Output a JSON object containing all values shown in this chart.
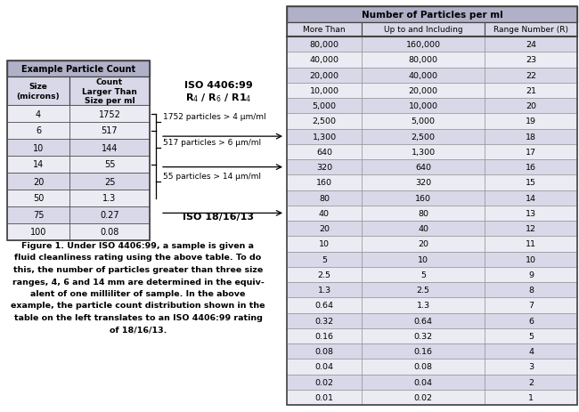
{
  "left_table_header": "Example Particle Count",
  "left_table_col1_header": "Size\n(microns)",
  "left_table_col2_header": "Count\nLarger Than\nSize per ml",
  "left_table_data": [
    [
      "4",
      "1752"
    ],
    [
      "6",
      "517"
    ],
    [
      "10",
      "144"
    ],
    [
      "14",
      "55"
    ],
    [
      "20",
      "25"
    ],
    [
      "50",
      "1.3"
    ],
    [
      "75",
      "0.27"
    ],
    [
      "100",
      "0.08"
    ]
  ],
  "iso_label": "ISO 4406:99",
  "iso_sub_r": "R",
  "iso_bottom": "ISO 18/16/13",
  "ann_labels": [
    "1752 particles > 4 μm/ml",
    "517 particles > 6 μm/ml",
    "55 particles > 14 μm/ml"
  ],
  "right_table_main_header": "Number of Particles per ml",
  "right_table_col_headers": [
    "More Than",
    "Up to and Including",
    "Range Number (R)"
  ],
  "right_table_data": [
    [
      "80,000",
      "160,000",
      "24"
    ],
    [
      "40,000",
      "80,000",
      "23"
    ],
    [
      "20,000",
      "40,000",
      "22"
    ],
    [
      "10,000",
      "20,000",
      "21"
    ],
    [
      "5,000",
      "10,000",
      "20"
    ],
    [
      "2,500",
      "5,000",
      "19"
    ],
    [
      "1,300",
      "2,500",
      "18"
    ],
    [
      "640",
      "1,300",
      "17"
    ],
    [
      "320",
      "640",
      "16"
    ],
    [
      "160",
      "320",
      "15"
    ],
    [
      "80",
      "160",
      "14"
    ],
    [
      "40",
      "80",
      "13"
    ],
    [
      "20",
      "40",
      "12"
    ],
    [
      "10",
      "20",
      "11"
    ],
    [
      "5",
      "10",
      "10"
    ],
    [
      "2.5",
      "5",
      "9"
    ],
    [
      "1.3",
      "2.5",
      "8"
    ],
    [
      "0.64",
      "1.3",
      "7"
    ],
    [
      "0.32",
      "0.64",
      "6"
    ],
    [
      "0.16",
      "0.32",
      "5"
    ],
    [
      "0.08",
      "0.16",
      "4"
    ],
    [
      "0.04",
      "0.08",
      "3"
    ],
    [
      "0.02",
      "0.04",
      "2"
    ],
    [
      "0.01",
      "0.02",
      "1"
    ]
  ],
  "right_table_highlight_rows": [
    0,
    2,
    4,
    6,
    8,
    10,
    12,
    14,
    16,
    18,
    20,
    22
  ],
  "figure_caption_lines": [
    "Figure 1. Under ISO 4406:99, a sample is given a",
    "fluid cleanliness rating using the above table. To do",
    "this, the number of particles greater than three size",
    "ranges, 4, 6 and 14 mm are determined in the equiv-",
    "alent of one milliliter of sample. In the above",
    "example, the particle count distribution shown in the",
    "table on the left translates to an ISO 4406:99 rating",
    "of 18/16/13."
  ],
  "bg_color": "#ffffff",
  "header_bg": "#b0b0c8",
  "row_alt_bg": "#d8d8e8",
  "row_white_bg": "#ebebf4",
  "border_dark": "#444444",
  "border_light": "#888888"
}
